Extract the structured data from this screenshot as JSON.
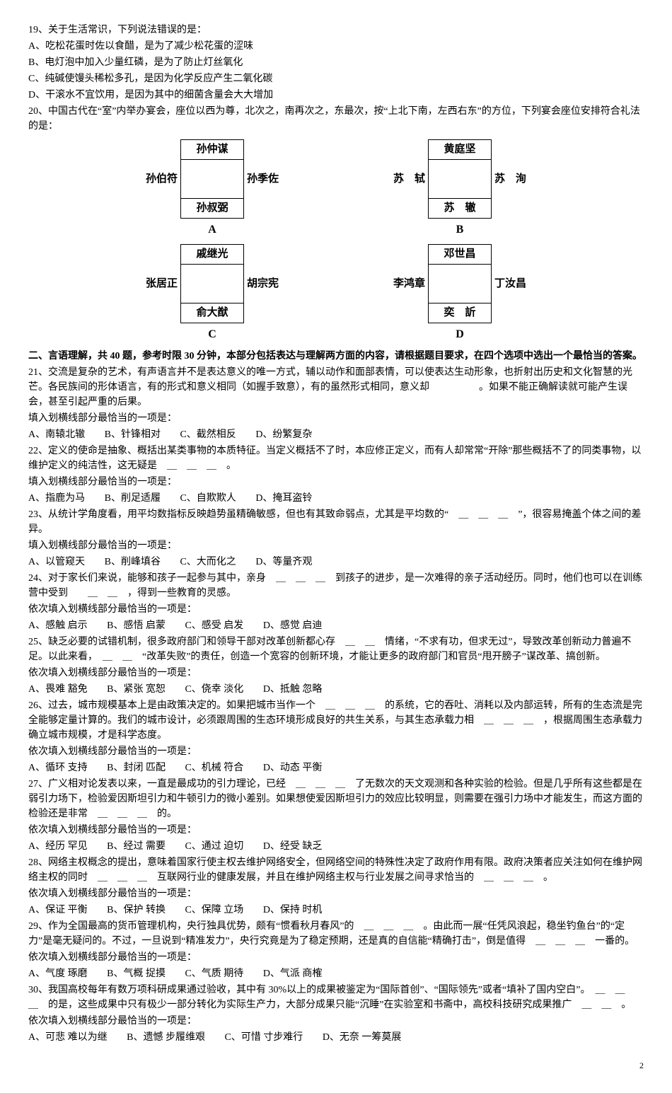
{
  "q19": {
    "stem": "19、关于生活常识，下列说法错误的是：",
    "A": "A、吃松花蛋时佐以食醋，是为了减少松花蛋的涩味",
    "B": "B、电灯泡中加入少量红磷，是为了防止灯丝氧化",
    "C": "C、纯碱使馒头稀松多孔，是因为化学反应产生二氧化碳",
    "D": "D、干滚水不宜饮用，是因为其中的细菌含量会大大增加"
  },
  "q20": {
    "stem": "20、中国古代在“室”内举办宴会，座位以西为尊，北次之，南再次之，东最次，按“上北下南，左西右东”的方位，下列宴会座位安排符合礼法的是：",
    "seatA": {
      "top": "孙仲谋",
      "left": "孙伯符",
      "right": "孙季佐",
      "bottom": "孙叔弼",
      "label": "A"
    },
    "seatB": {
      "top": "黄庭坚",
      "left": "苏　轼",
      "right": "苏　洵",
      "bottom": "苏　辙",
      "label": "B"
    },
    "seatC": {
      "top": "戚继光",
      "left": "张居正",
      "right": "胡宗宪",
      "bottom": "俞大猷",
      "label": "C"
    },
    "seatD": {
      "top": "邓世昌",
      "left": "李鸿章",
      "right": "丁汝昌",
      "bottom": "奕　訢",
      "label": "D"
    }
  },
  "section2": "二、言语理解，共 40 题，参考时限 30 分钟，本部分包括表达与理解两方面的内容，请根据题目要求，在四个选项中选出一个最恰当的答案。",
  "q21": {
    "stem": "21、交流是复杂的艺术，有声语言并不是表达意义的唯一方式，辅以动作和面部表情，可以使表达生动形象，也折射出历史和文化智慧的光芒。各民族间的形体语言，有的形式和意义相同（如握手致意），有的虽然形式相同，意义却　　　　　。如果不能正确解读就可能产生误会，甚至引起严重的后果。",
    "prompt": "填入划横线部分最恰当的一项是：",
    "A": "A、南辕北辙",
    "B": "B、针锋相对",
    "C": "C、截然相反",
    "D": "D、纷繁复杂"
  },
  "q22": {
    "stem": "22、定义的使命是抽象、概括出某类事物的本质特征。当定义概括不了时，本应修正定义，而有人却常常“开除”那些概括不了的同类事物，以维护定义的纯洁性，这无疑是　＿　＿　＿　。",
    "prompt": "填入划横线部分最恰当的一项是：",
    "A": "A、指鹿为马",
    "B": "B、削足适履",
    "C": "C、自欺欺人",
    "D": "D、掩耳盗铃"
  },
  "q23": {
    "stem": "23、从统计学角度看，用平均数指标反映趋势虽精确敏感，但也有其致命弱点，尤其是平均数的“　＿　＿　＿　”，很容易掩盖个体之间的差异。",
    "prompt": "填入划横线部分最恰当的一项是：",
    "A": "A、以管窥天",
    "B": "B、削峰填谷",
    "C": "C、大而化之",
    "D": "D、等量齐观"
  },
  "q24": {
    "stem": "24、对于家长们来说，能够和孩子一起参与其中，亲身　＿　＿　＿　到孩子的进步，是一次难得的亲子活动经历。同时，他们也可以在训练营中受到　　＿　＿　，得到一些教育的灵感。",
    "prompt": "依次填入划横线部分最恰当的一项是：",
    "A": "A、感触 启示",
    "B": "B、感悟 启蒙",
    "C": "C、感受 启发",
    "D": "D、感觉 启迪"
  },
  "q25": {
    "stem": "25、缺乏必要的试错机制，很多政府部门和领导干部对改革创新都心存　＿　＿　情绪，“不求有功，但求无过”，导致改革创新动力普遍不足。以此来看，　＿　＿　“改革失败”的责任，创造一个宽容的创新环境，才能让更多的政府部门和官员“甩开膀子”谋改革、搞创新。",
    "prompt": "依次填入划横线部分最恰当的一项是：",
    "A": "A、畏难 豁免",
    "B": "B、紧张 宽恕",
    "C": "C、侥幸 淡化",
    "D": "D、抵触 忽略"
  },
  "q26": {
    "stem": "26、过去，城市规模基本上是由政策决定的。如果把城市当作一个　＿　＿　＿　的系统，它的吞吐、消耗以及内部运转，所有的生态流是完全能够定量计算的。我们的城市设计，必须跟周围的生态环境形成良好的共生关系，与其生态承载力相　＿　＿　＿　，根据周围生态承载力确立城市规模，才是科学态度。",
    "prompt": "依次填入划横线部分最恰当的一项是：",
    "A": "A、循环 支持",
    "B": "B、封闭 匹配",
    "C": "C、机械 符合",
    "D": "D、动态 平衡"
  },
  "q27": {
    "stem": "27、广义相对论发表以来，一直是最成功的引力理论，已经　＿　＿　＿　了无数次的天文观测和各种实验的检验。但是几乎所有这些都是在弱引力场下，检验爱因斯坦引力和牛顿引力的微小差别。如果想使爱因斯坦引力的效应比较明显，则需要在强引力场中才能发生，而这方面的检验还是非常　＿　＿　＿　的。",
    "prompt": "依次填入划横线部分最恰当的一项是：",
    "A": "A、经历 罕见",
    "B": "B、经过 需要",
    "C": "C、通过 迫切",
    "D": "D、经受 缺乏"
  },
  "q28": {
    "stem": "28、网络主权概念的提出，意味着国家行使主权去维护网络安全，但网络空间的特殊性决定了政府作用有限。政府决策者应关注如何在维护网络主权的同时　＿　＿　＿　互联网行业的健康发展，并且在维护网络主权与行业发展之间寻求恰当的　＿　＿　＿　。",
    "prompt": "依次填入划横线部分最恰当的一项是：",
    "A": "A、保证 平衡",
    "B": "B、保护 转换",
    "C": "C、保障 立场",
    "D": "D、保持 时机"
  },
  "q29": {
    "stem": "29、作为全国最高的货币管理机构，央行独具优势，颇有“惯看秋月春风”的　＿　＿　＿　。由此而一展“任凭风浪起，稳坐钓鱼台”的“定力”是毫无疑问的。不过，一旦说到“精准发力”，央行究竟是为了稳定预期，还是真的自信能“精确打击”，倒是值得　＿　＿　＿　一番的。",
    "prompt": "依次填入划横线部分最恰当的一项是：",
    "A": "A、气度 琢磨",
    "B": "B、气概 捉摸",
    "C": "C、气质 期待",
    "D": "D、气派 商榷"
  },
  "q30": {
    "stem": "30、我国高校每年有数万项科研成果通过验收，其中有 30%以上的成果被鉴定为“国际首创”、“国际领先”或者“填补了国内空白”。　＿　＿　＿　的是，这些成果中只有极少一部分转化为实际生产力，大部分成果只能“沉睡”在实验室和书斋中，高校科技研究成果推广　＿　＿　。",
    "prompt": "依次填入划横线部分最恰当的一项是：",
    "A": "A、可悲 难以为继",
    "B": "B、遗憾 步履维艰",
    "C": "C、可惜 寸步难行",
    "D": "D、无奈 一筹莫展"
  },
  "pagenum": "2"
}
